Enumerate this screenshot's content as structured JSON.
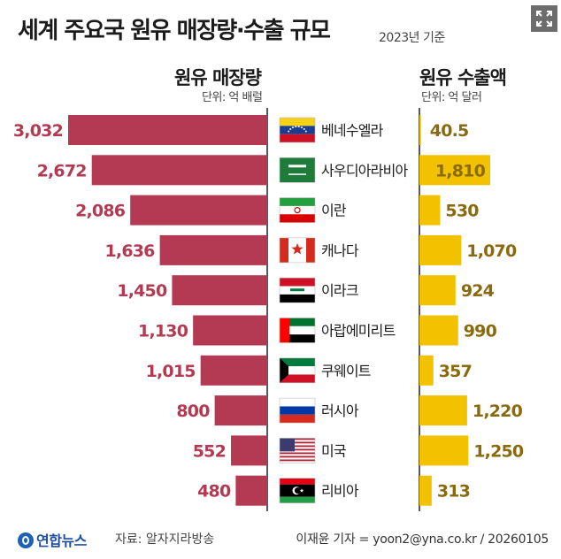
{
  "header": {
    "title": "세계 주요국 원유 매장량·수출 규모",
    "subtitle": "2023년 기준"
  },
  "left_section": {
    "title": "원유 매장량",
    "unit": "단위: 억 배럴"
  },
  "right_section": {
    "title": "원유 수출액",
    "unit": "단위: 억 달러"
  },
  "colors": {
    "reserves": "#b33a52",
    "reserves_text": "#b33a52",
    "exports": "#f2c200",
    "exports_text": "#8a6a0e"
  },
  "chart_data": {
    "type": "bar",
    "title": "세계 주요국 원유 매장량·수출 규모",
    "categories": [
      "베네수엘라",
      "사우디아라비아",
      "이란",
      "캐나다",
      "이라크",
      "아랍에미리트",
      "쿠웨이트",
      "러시아",
      "미국",
      "리비아"
    ],
    "flags": [
      "venezuela-flag",
      "saudi-arabia-flag",
      "iran-flag",
      "canada-flag",
      "iraq-flag",
      "uae-flag",
      "kuwait-flag",
      "russia-flag",
      "usa-flag",
      "libya-flag"
    ],
    "series": [
      {
        "name": "원유 매장량",
        "unit": "억 배럴",
        "values": [
          3032,
          2672,
          2086,
          1636,
          1450,
          1130,
          1015,
          800,
          552,
          480
        ],
        "labels": [
          "3,032",
          "2,672",
          "2,086",
          "1,636",
          "1,450",
          "1,130",
          "1,015",
          "800",
          "552",
          "480"
        ]
      },
      {
        "name": "원유 수출액",
        "unit": "억 달러",
        "values": [
          40.5,
          1810,
          530,
          1070,
          924,
          990,
          357,
          1220,
          1250,
          313
        ],
        "labels": [
          "40.5",
          "1,810",
          "530",
          "1,070",
          "924",
          "990",
          "357",
          "1,220",
          "1,250",
          "313"
        ]
      }
    ]
  },
  "footer": {
    "logo": "연합뉴스",
    "source": "자료: 알자지라방송",
    "credit": "이재윤 기자 = yoon2@yna.co.kr / 20260105"
  }
}
